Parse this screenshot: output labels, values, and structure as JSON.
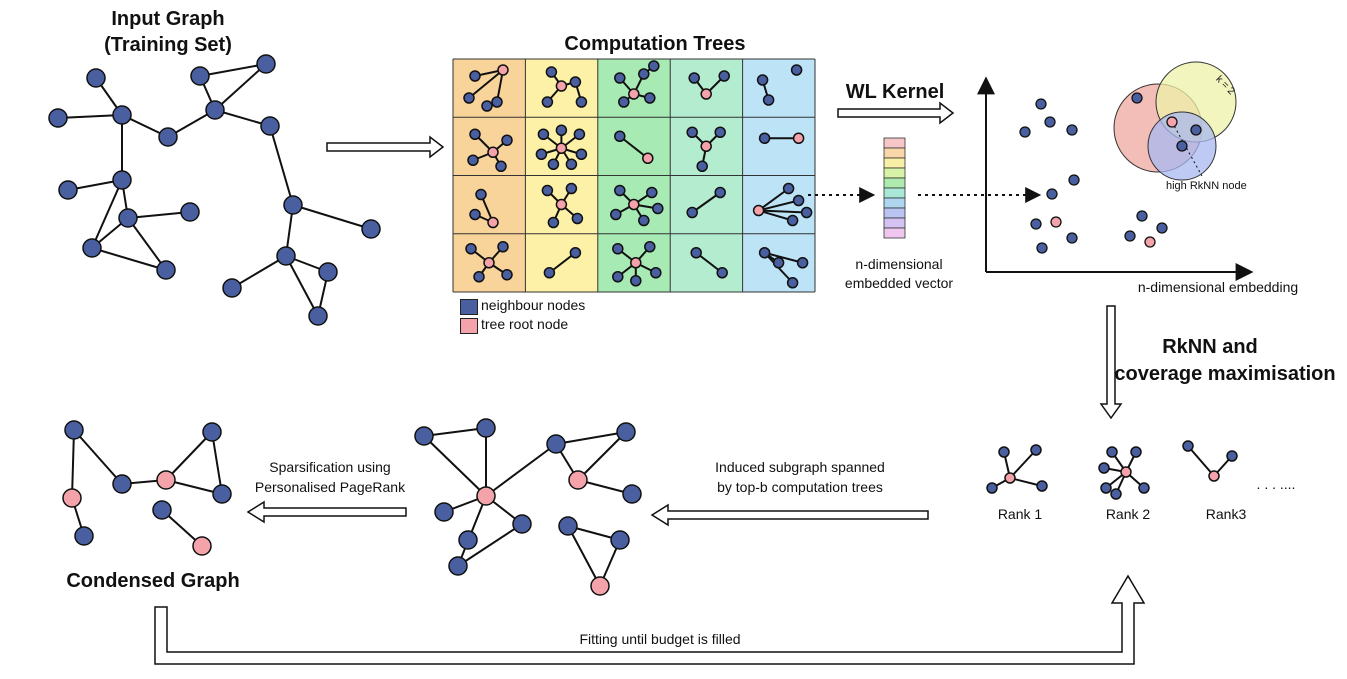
{
  "labels": {
    "input_graph_line1": "Input Graph",
    "input_graph_line2": "(Training Set)",
    "computation_trees": "Computation Trees",
    "legend_neighbour": "neighbour nodes",
    "legend_root": "tree root node",
    "wl_kernel": "WL Kernel",
    "vector_line1": "n-dimensional",
    "vector_line2": "embedded vector",
    "embedding_axis": "n-dimensional embedding",
    "k_label": "k = 2",
    "high_rknn": "high RkNN node",
    "rknn_line1": "RkNN and",
    "rknn_line2": "coverage maximisation",
    "rank1": "Rank 1",
    "rank2": "Rank 2",
    "rank3": "Rank3",
    "ellipsis": ". . . ....",
    "induced_line1": "Induced subgraph spanned",
    "induced_line2": "by top-b computation trees",
    "sparsification_line1": "Sparsification using",
    "sparsification_line2": "Personalised PageRank",
    "condensed_graph": "Condensed Graph",
    "fitting": "Fitting until budget is filled"
  },
  "colors": {
    "neighbour_node": "#4a5fa0",
    "root_node": "#f4a3ab",
    "edge": "#111111",
    "rank_panel": "#f8cfb7",
    "grid_col1": "#f9d49a",
    "grid_col2": "#fcf1a6",
    "grid_col3": "#a8eab4",
    "grid_col4": "#b4ecd0",
    "grid_col5": "#bde3f7",
    "cluster_red": "#f0a8a0",
    "cluster_yellow": "#eef2a8",
    "cluster_blue": "#a8b8f0",
    "vector_cells": [
      "#f6c6c9",
      "#f9d7a8",
      "#f8eea6",
      "#d8f2a8",
      "#aeeaae",
      "#a9e8d6",
      "#aed6ef",
      "#b9c4f2",
      "#d3c2f2",
      "#efc6ee"
    ]
  }
}
